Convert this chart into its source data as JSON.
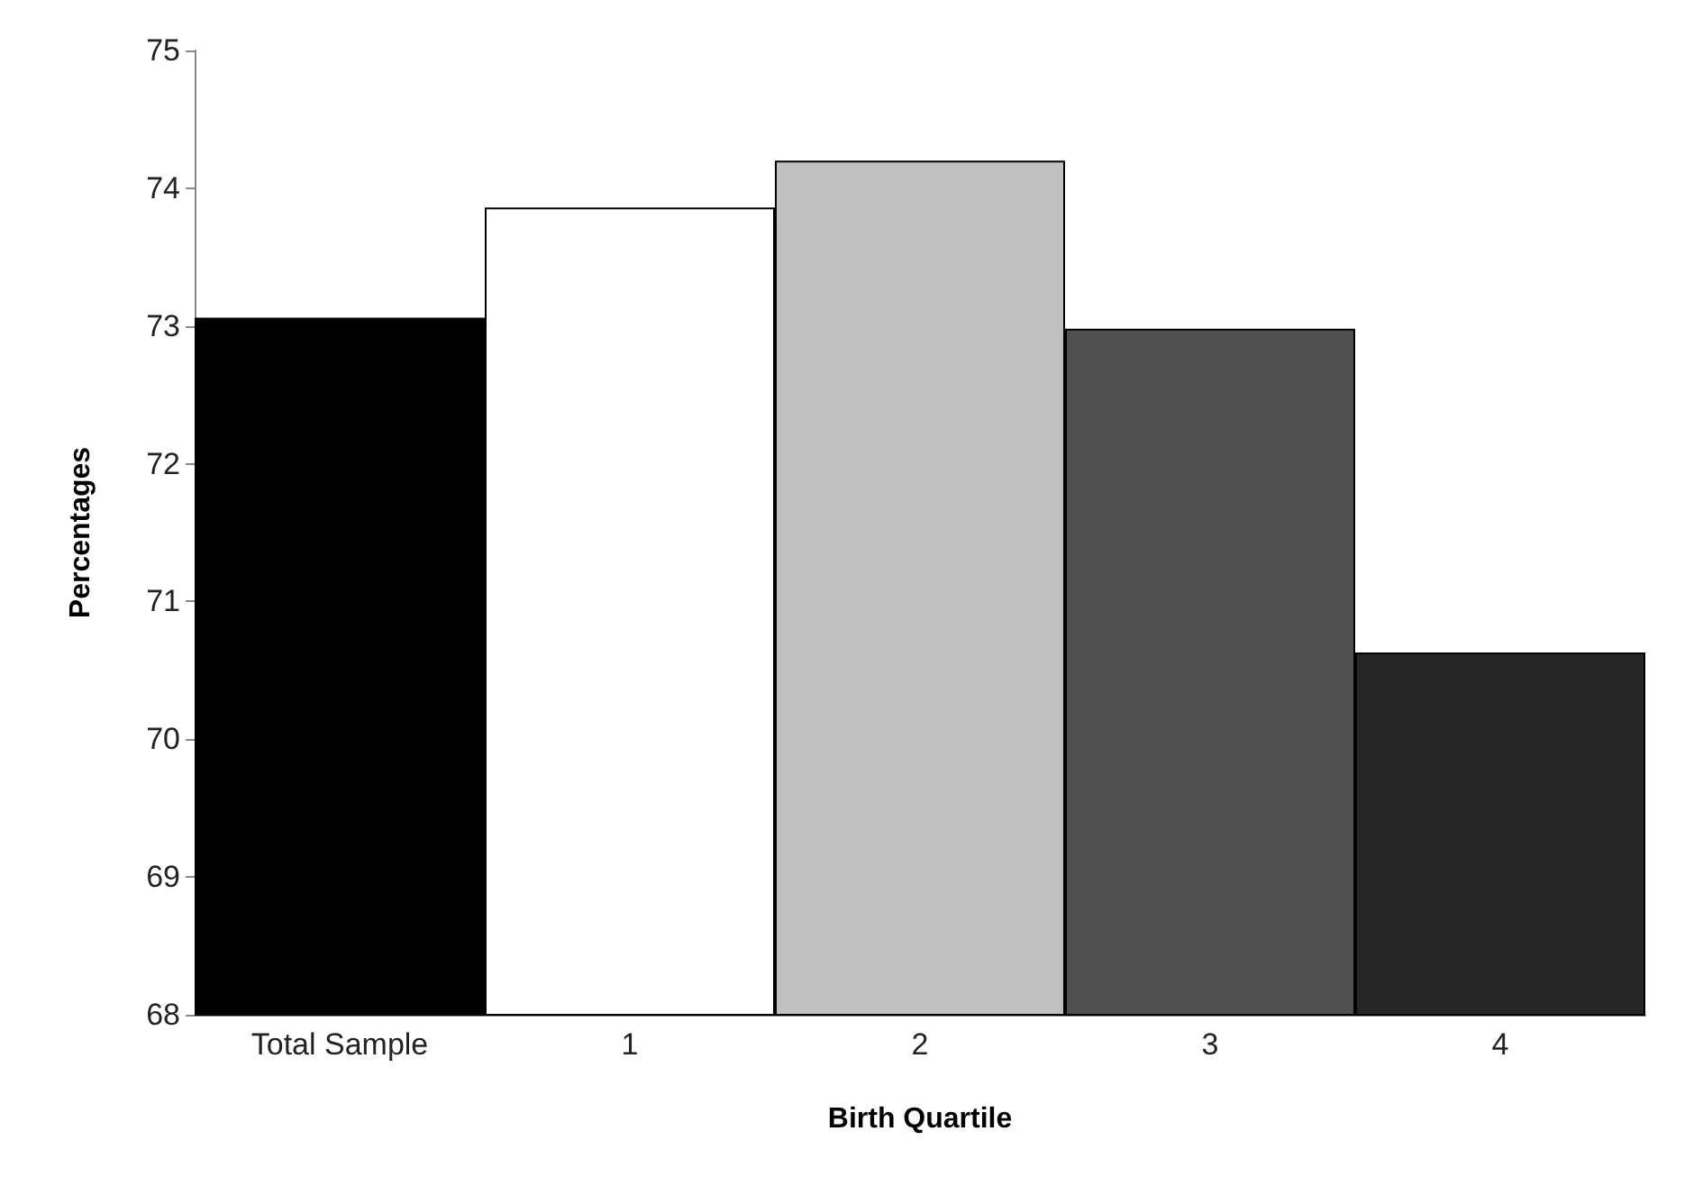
{
  "chart_data": {
    "type": "bar",
    "xlabel": "Birth Quartile",
    "ylabel": "Percentages",
    "categories": [
      "Total Sample",
      "1",
      "2",
      "3",
      "4"
    ],
    "values": [
      73.06,
      73.86,
      74.2,
      72.98,
      70.63
    ],
    "colors": [
      "#000000",
      "#ffffff",
      "#c0c0c0",
      "#505050",
      "#262626"
    ],
    "ylim": [
      68,
      75
    ],
    "yticks": [
      68,
      69,
      70,
      71,
      72,
      73,
      74,
      75
    ],
    "grid": false
  }
}
